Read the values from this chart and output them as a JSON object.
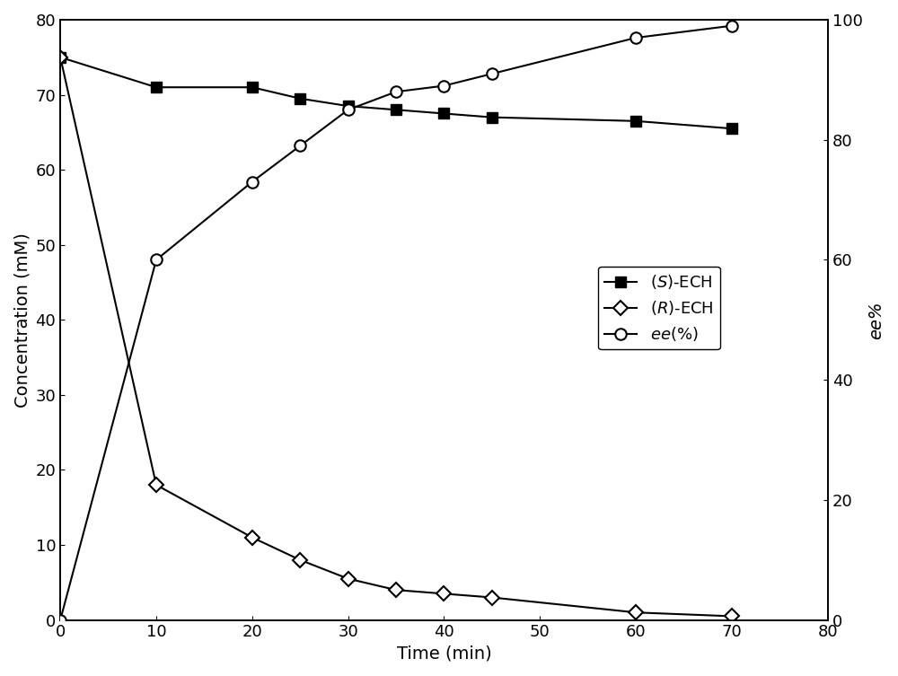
{
  "time_S_ECH": [
    0,
    10,
    20,
    25,
    30,
    35,
    40,
    45,
    60,
    70
  ],
  "S_ECH": [
    75,
    71,
    71,
    69.5,
    68.5,
    68,
    67.5,
    67,
    66.5,
    65.5
  ],
  "time_R_ECH": [
    0,
    10,
    20,
    25,
    30,
    35,
    40,
    45,
    60,
    70
  ],
  "R_ECH": [
    75,
    18,
    11,
    8,
    5.5,
    4,
    3.5,
    3,
    1,
    0.5
  ],
  "time_ee": [
    0,
    10,
    20,
    25,
    30,
    35,
    40,
    45,
    60,
    70
  ],
  "ee": [
    0,
    60,
    73,
    79,
    85,
    88,
    89,
    91,
    97,
    99
  ],
  "xlabel": "Time (min)",
  "ylabel_left": "Concentration (mM)",
  "ylabel_right": "ee%",
  "xlim": [
    0,
    80
  ],
  "ylim_left": [
    0,
    80
  ],
  "ylim_right": [
    0,
    100
  ],
  "xticks": [
    0,
    10,
    20,
    30,
    40,
    50,
    60,
    70,
    80
  ],
  "yticks_left": [
    0,
    10,
    20,
    30,
    40,
    50,
    60,
    70,
    80
  ],
  "yticks_right": [
    0,
    20,
    40,
    60,
    80,
    100
  ],
  "line_color": "#000000",
  "background_color": "#ffffff",
  "label_fontsize": 14,
  "tick_fontsize": 13,
  "legend_fontsize": 13
}
